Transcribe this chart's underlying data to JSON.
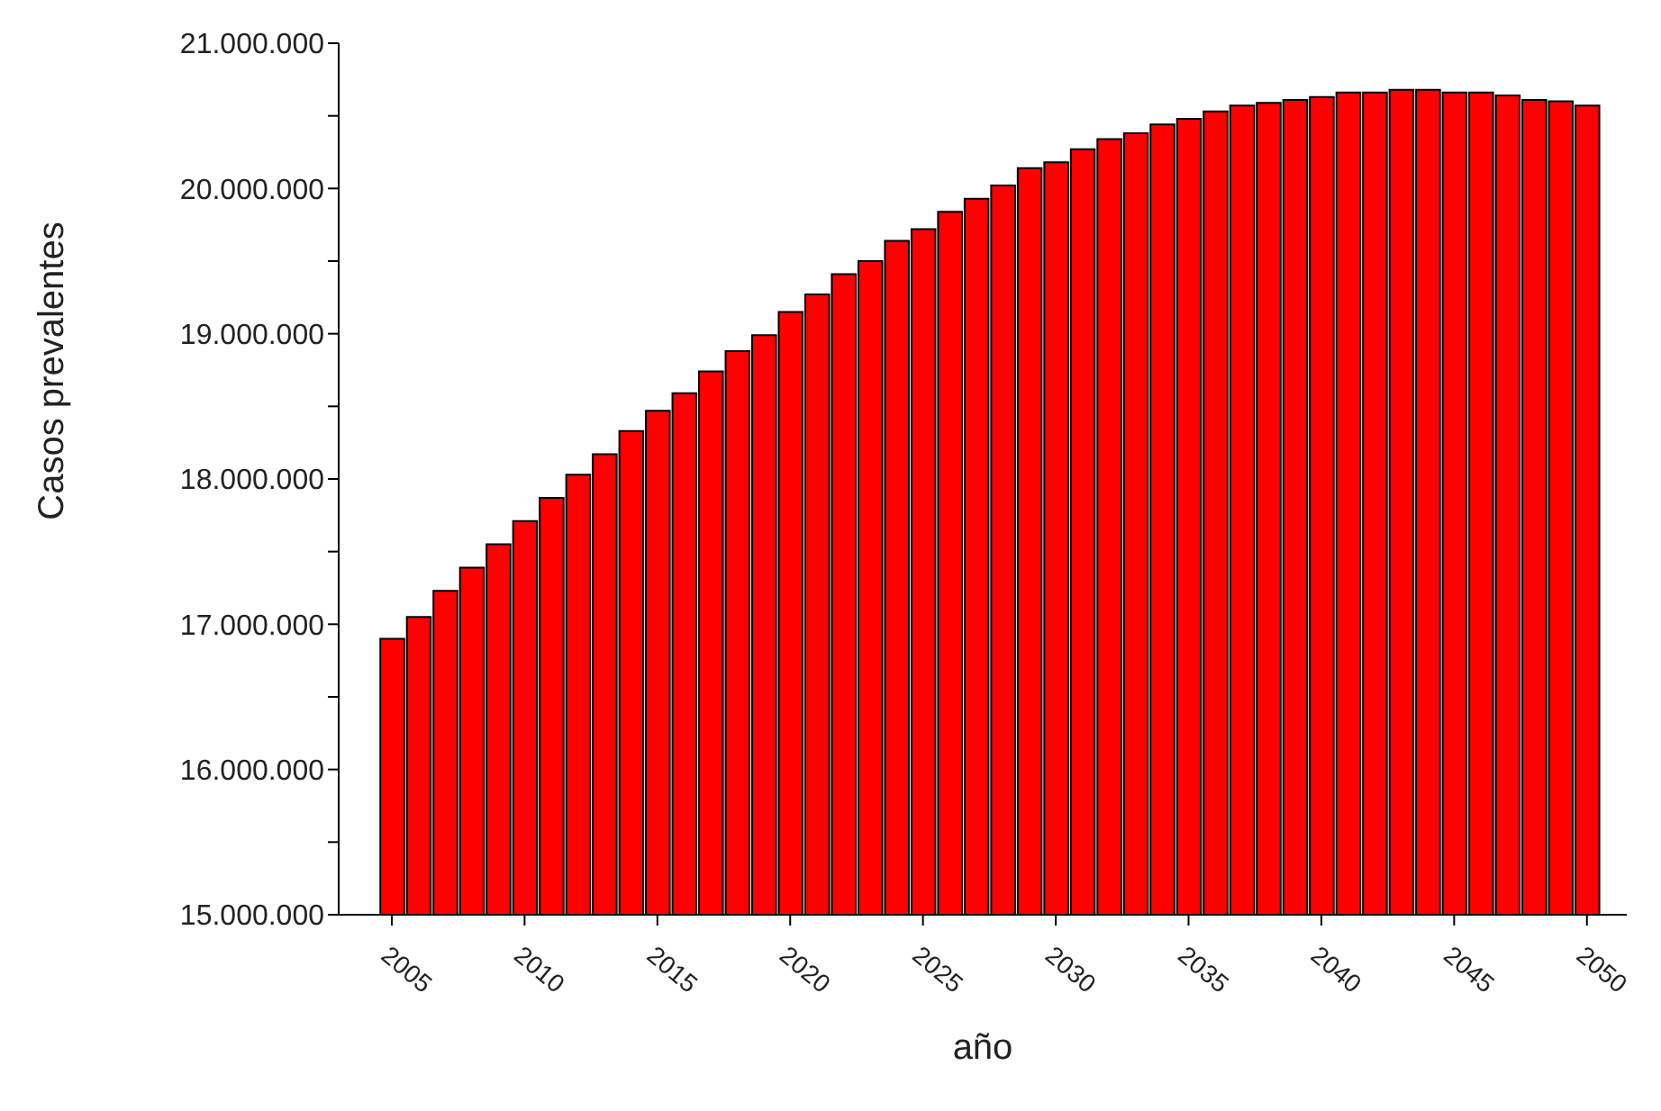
{
  "chart_data": {
    "type": "bar",
    "xlabel": "año",
    "ylabel": "Casos prevalentes",
    "x": [
      2005,
      2006,
      2007,
      2008,
      2009,
      2010,
      2011,
      2012,
      2013,
      2014,
      2015,
      2016,
      2017,
      2018,
      2019,
      2020,
      2021,
      2022,
      2023,
      2024,
      2025,
      2026,
      2027,
      2028,
      2029,
      2030,
      2031,
      2032,
      2033,
      2034,
      2035,
      2036,
      2037,
      2038,
      2039,
      2040,
      2041,
      2042,
      2043,
      2044,
      2045,
      2046,
      2047,
      2048,
      2049,
      2050
    ],
    "series": [
      {
        "color": "#ff0000",
        "values": [
          16900000,
          17050000,
          17230000,
          17390000,
          17550000,
          17710000,
          17870000,
          18030000,
          18170000,
          18330000,
          18470000,
          18590000,
          18740000,
          18880000,
          18990000,
          19150000,
          19270000,
          19410000,
          19500000,
          19640000,
          19720000,
          19840000,
          19930000,
          20020000,
          20140000,
          20180000,
          20270000,
          20340000,
          20380000,
          20440000,
          20480000,
          20530000,
          20570000,
          20590000,
          20610000,
          20630000,
          20660000,
          20660000,
          20680000,
          20680000,
          20660000,
          20660000,
          20640000,
          20610000,
          20600000,
          20570000
        ]
      }
    ],
    "xlim": [
      2003,
      2051.5
    ],
    "xticks": [
      2005,
      2010,
      2015,
      2020,
      2025,
      2030,
      2035,
      2040,
      2045,
      2050
    ],
    "ylim": [
      15000000,
      21000000
    ],
    "yticks": [
      {
        "value": 15000000,
        "label": "15.000.000"
      },
      {
        "value": 15500000,
        "label": null
      },
      {
        "value": 16000000,
        "label": "16.000.000"
      },
      {
        "value": 16500000,
        "label": null
      },
      {
        "value": 17000000,
        "label": "17.000.000"
      },
      {
        "value": 17500000,
        "label": null
      },
      {
        "value": 18000000,
        "label": "18.000.000"
      },
      {
        "value": 18500000,
        "label": null
      },
      {
        "value": 19000000,
        "label": "19.000.000"
      },
      {
        "value": 19500000,
        "label": null
      },
      {
        "value": 20000000,
        "label": "20.000.000"
      },
      {
        "value": 20500000,
        "label": null
      },
      {
        "value": 21000000,
        "label": "21.000.000"
      }
    ],
    "grid": false,
    "legend": false
  }
}
